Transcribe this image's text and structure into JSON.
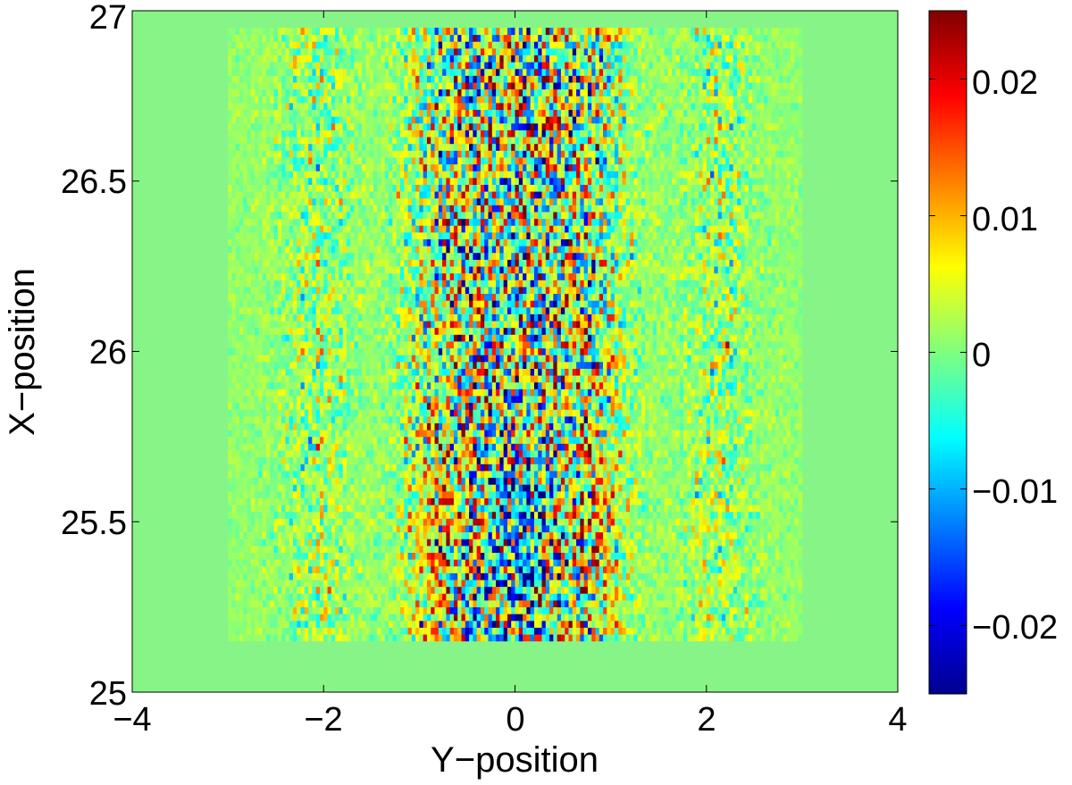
{
  "chart_data": {
    "type": "heatmap",
    "title": "",
    "xlabel": "Y−position",
    "ylabel": "X−position",
    "xlim": [
      -4,
      4
    ],
    "ylim": [
      25,
      27
    ],
    "x_ticks": [
      "−4",
      "−2",
      "0",
      "2",
      "4"
    ],
    "y_ticks": [
      "25",
      "25.5",
      "26",
      "26.5",
      "27"
    ],
    "colormap": "jet",
    "clim": [
      -0.025,
      0.025
    ],
    "colorbar_ticks": [
      "−0.02",
      "−0.01",
      "0",
      "0.01",
      "0.02"
    ],
    "grid": false,
    "data_extent": {
      "y_position": [
        -3,
        3
      ],
      "x_position": [
        25.15,
        26.95
      ]
    },
    "pattern": "Checkerboard-like +/- fluctuations concentrated in a central vertical band about |Y| < 1.5; negative (blue) values cluster near Y = 0 at lower X (25.2-25.8), positive (red/orange) values at Y about ±0.8; background elsewhere near 0."
  }
}
